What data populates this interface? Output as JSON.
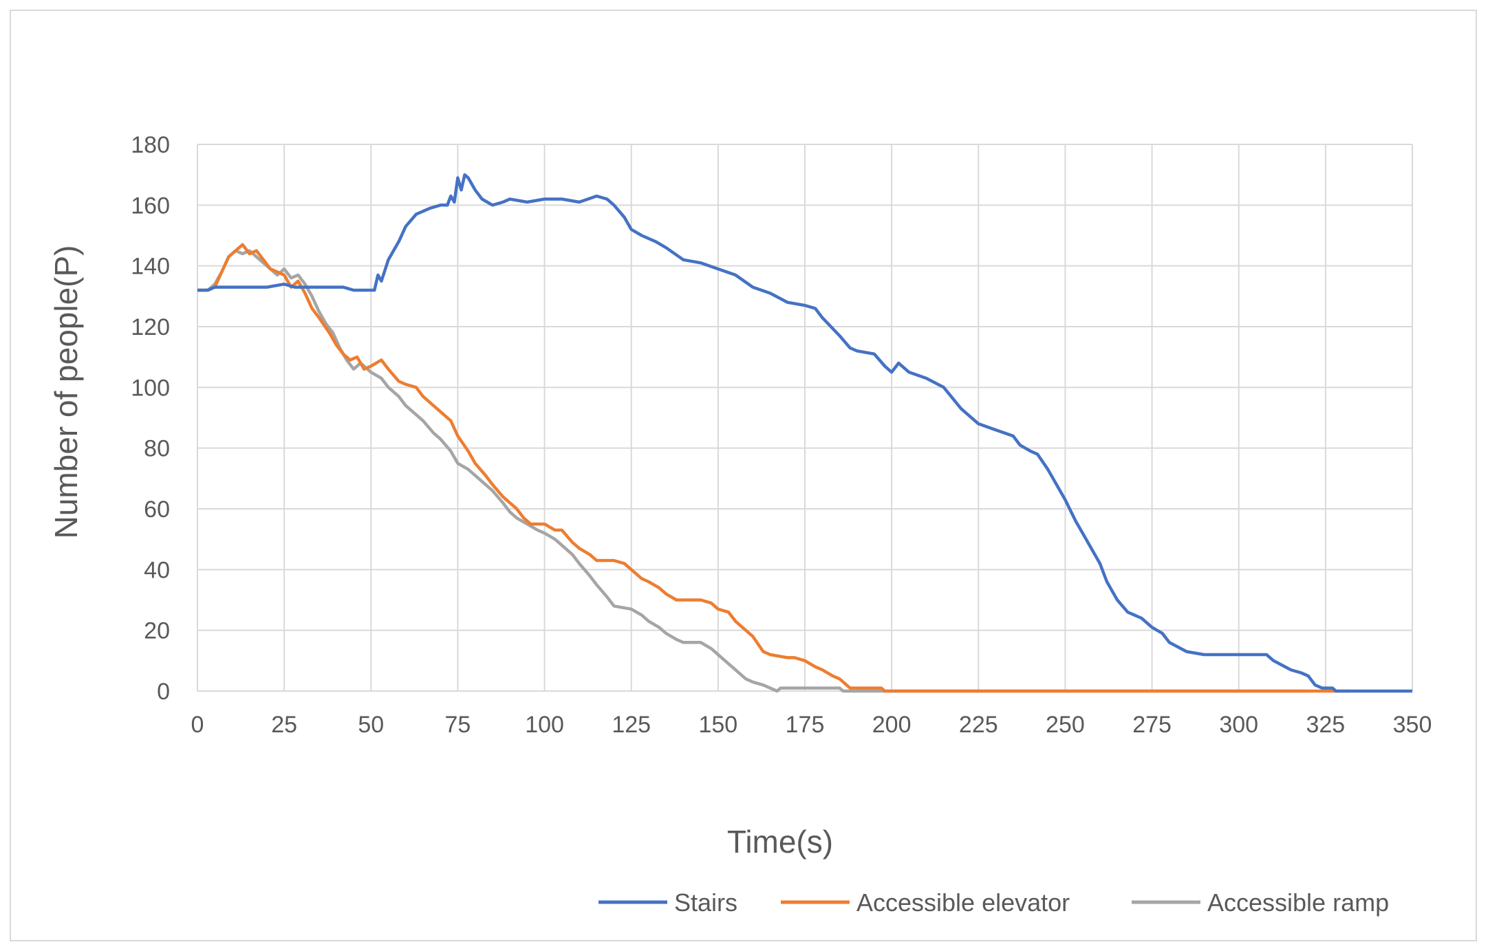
{
  "chart_data": {
    "type": "line",
    "title": "",
    "xlabel": "Time(s)",
    "ylabel": "Number of people(P)",
    "xlim": [
      0,
      350
    ],
    "ylim": [
      0,
      180
    ],
    "x_ticks": [
      0,
      25,
      50,
      75,
      100,
      125,
      150,
      175,
      200,
      225,
      250,
      275,
      300,
      325,
      350
    ],
    "y_ticks": [
      0,
      20,
      40,
      60,
      80,
      100,
      120,
      140,
      160,
      180
    ],
    "grid": true,
    "legend_position": "bottom-right",
    "series": [
      {
        "name": "Stairs",
        "color": "#4472C4",
        "points": [
          [
            0,
            132
          ],
          [
            3,
            132
          ],
          [
            5,
            133
          ],
          [
            10,
            133
          ],
          [
            15,
            133
          ],
          [
            20,
            133
          ],
          [
            25,
            134
          ],
          [
            28,
            133
          ],
          [
            35,
            133
          ],
          [
            42,
            133
          ],
          [
            45,
            132
          ],
          [
            50,
            132
          ],
          [
            51,
            132
          ],
          [
            52,
            137
          ],
          [
            53,
            135
          ],
          [
            55,
            142
          ],
          [
            58,
            148
          ],
          [
            60,
            153
          ],
          [
            63,
            157
          ],
          [
            67,
            159
          ],
          [
            70,
            160
          ],
          [
            72,
            160
          ],
          [
            73,
            163
          ],
          [
            74,
            161
          ],
          [
            75,
            169
          ],
          [
            76,
            165
          ],
          [
            77,
            170
          ],
          [
            78,
            169
          ],
          [
            80,
            165
          ],
          [
            82,
            162
          ],
          [
            85,
            160
          ],
          [
            88,
            161
          ],
          [
            90,
            162
          ],
          [
            95,
            161
          ],
          [
            100,
            162
          ],
          [
            105,
            162
          ],
          [
            110,
            161
          ],
          [
            115,
            163
          ],
          [
            118,
            162
          ],
          [
            120,
            160
          ],
          [
            123,
            156
          ],
          [
            125,
            152
          ],
          [
            128,
            150
          ],
          [
            132,
            148
          ],
          [
            135,
            146
          ],
          [
            140,
            142
          ],
          [
            145,
            141
          ],
          [
            150,
            139
          ],
          [
            155,
            137
          ],
          [
            160,
            133
          ],
          [
            165,
            131
          ],
          [
            170,
            128
          ],
          [
            175,
            127
          ],
          [
            178,
            126
          ],
          [
            180,
            123
          ],
          [
            185,
            117
          ],
          [
            188,
            113
          ],
          [
            190,
            112
          ],
          [
            195,
            111
          ],
          [
            198,
            107
          ],
          [
            200,
            105
          ],
          [
            202,
            108
          ],
          [
            205,
            105
          ],
          [
            210,
            103
          ],
          [
            215,
            100
          ],
          [
            220,
            93
          ],
          [
            225,
            88
          ],
          [
            230,
            86
          ],
          [
            235,
            84
          ],
          [
            237,
            81
          ],
          [
            240,
            79
          ],
          [
            242,
            78
          ],
          [
            245,
            73
          ],
          [
            248,
            67
          ],
          [
            250,
            63
          ],
          [
            253,
            56
          ],
          [
            255,
            52
          ],
          [
            258,
            46
          ],
          [
            260,
            42
          ],
          [
            262,
            36
          ],
          [
            265,
            30
          ],
          [
            268,
            26
          ],
          [
            272,
            24
          ],
          [
            275,
            21
          ],
          [
            278,
            19
          ],
          [
            280,
            16
          ],
          [
            285,
            13
          ],
          [
            290,
            12
          ],
          [
            300,
            12
          ],
          [
            308,
            12
          ],
          [
            310,
            10
          ],
          [
            315,
            7
          ],
          [
            318,
            6
          ],
          [
            320,
            5
          ],
          [
            322,
            2
          ],
          [
            324,
            1
          ],
          [
            327,
            1
          ],
          [
            328,
            0
          ],
          [
            335,
            0
          ],
          [
            350,
            0
          ]
        ]
      },
      {
        "name": "Accessible elevator",
        "color": "#ED7D31",
        "points": [
          [
            0,
            132
          ],
          [
            3,
            132
          ],
          [
            5,
            133
          ],
          [
            7,
            138
          ],
          [
            9,
            143
          ],
          [
            11,
            145
          ],
          [
            13,
            147
          ],
          [
            15,
            144
          ],
          [
            17,
            145
          ],
          [
            19,
            142
          ],
          [
            21,
            139
          ],
          [
            23,
            138
          ],
          [
            25,
            137
          ],
          [
            27,
            133
          ],
          [
            29,
            135
          ],
          [
            31,
            131
          ],
          [
            33,
            126
          ],
          [
            35,
            123
          ],
          [
            38,
            118
          ],
          [
            40,
            114
          ],
          [
            42,
            111
          ],
          [
            44,
            109
          ],
          [
            46,
            110
          ],
          [
            48,
            106
          ],
          [
            50,
            107
          ],
          [
            53,
            109
          ],
          [
            55,
            106
          ],
          [
            58,
            102
          ],
          [
            60,
            101
          ],
          [
            63,
            100
          ],
          [
            65,
            97
          ],
          [
            68,
            94
          ],
          [
            70,
            92
          ],
          [
            73,
            89
          ],
          [
            75,
            84
          ],
          [
            78,
            79
          ],
          [
            80,
            75
          ],
          [
            83,
            71
          ],
          [
            85,
            68
          ],
          [
            88,
            64
          ],
          [
            90,
            62
          ],
          [
            92,
            60
          ],
          [
            94,
            57
          ],
          [
            96,
            55
          ],
          [
            100,
            55
          ],
          [
            103,
            53
          ],
          [
            105,
            53
          ],
          [
            108,
            49
          ],
          [
            110,
            47
          ],
          [
            113,
            45
          ],
          [
            115,
            43
          ],
          [
            120,
            43
          ],
          [
            123,
            42
          ],
          [
            125,
            40
          ],
          [
            128,
            37
          ],
          [
            130,
            36
          ],
          [
            133,
            34
          ],
          [
            135,
            32
          ],
          [
            138,
            30
          ],
          [
            140,
            30
          ],
          [
            145,
            30
          ],
          [
            148,
            29
          ],
          [
            150,
            27
          ],
          [
            153,
            26
          ],
          [
            155,
            23
          ],
          [
            158,
            20
          ],
          [
            160,
            18
          ],
          [
            163,
            13
          ],
          [
            165,
            12
          ],
          [
            170,
            11
          ],
          [
            172,
            11
          ],
          [
            175,
            10
          ],
          [
            178,
            8
          ],
          [
            180,
            7
          ],
          [
            183,
            5
          ],
          [
            185,
            4
          ],
          [
            188,
            1
          ],
          [
            190,
            1
          ],
          [
            195,
            1
          ],
          [
            197,
            1
          ],
          [
            198,
            0
          ],
          [
            200,
            0
          ],
          [
            250,
            0
          ],
          [
            320,
            0
          ],
          [
            325,
            0
          ],
          [
            332,
            0
          ]
        ]
      },
      {
        "name": "Accessible ramp",
        "color": "#A5A5A5",
        "points": [
          [
            0,
            132
          ],
          [
            3,
            132
          ],
          [
            5,
            134
          ],
          [
            7,
            138
          ],
          [
            9,
            143
          ],
          [
            11,
            145
          ],
          [
            13,
            144
          ],
          [
            15,
            145
          ],
          [
            17,
            143
          ],
          [
            19,
            141
          ],
          [
            21,
            139
          ],
          [
            23,
            137
          ],
          [
            25,
            139
          ],
          [
            27,
            136
          ],
          [
            29,
            137
          ],
          [
            31,
            134
          ],
          [
            33,
            130
          ],
          [
            35,
            125
          ],
          [
            37,
            121
          ],
          [
            39,
            118
          ],
          [
            41,
            113
          ],
          [
            43,
            109
          ],
          [
            45,
            106
          ],
          [
            47,
            108
          ],
          [
            50,
            105
          ],
          [
            53,
            103
          ],
          [
            55,
            100
          ],
          [
            58,
            97
          ],
          [
            60,
            94
          ],
          [
            63,
            91
          ],
          [
            65,
            89
          ],
          [
            68,
            85
          ],
          [
            70,
            83
          ],
          [
            73,
            79
          ],
          [
            75,
            75
          ],
          [
            78,
            73
          ],
          [
            80,
            71
          ],
          [
            83,
            68
          ],
          [
            85,
            66
          ],
          [
            88,
            62
          ],
          [
            90,
            59
          ],
          [
            92,
            57
          ],
          [
            95,
            55
          ],
          [
            98,
            53
          ],
          [
            100,
            52
          ],
          [
            103,
            50
          ],
          [
            105,
            48
          ],
          [
            108,
            45
          ],
          [
            110,
            42
          ],
          [
            113,
            38
          ],
          [
            115,
            35
          ],
          [
            118,
            31
          ],
          [
            120,
            28
          ],
          [
            125,
            27
          ],
          [
            128,
            25
          ],
          [
            130,
            23
          ],
          [
            133,
            21
          ],
          [
            135,
            19
          ],
          [
            138,
            17
          ],
          [
            140,
            16
          ],
          [
            145,
            16
          ],
          [
            148,
            14
          ],
          [
            150,
            12
          ],
          [
            153,
            9
          ],
          [
            155,
            7
          ],
          [
            158,
            4
          ],
          [
            160,
            3
          ],
          [
            163,
            2
          ],
          [
            165,
            1
          ],
          [
            167,
            0
          ],
          [
            168,
            1
          ],
          [
            170,
            1
          ],
          [
            175,
            1
          ],
          [
            180,
            1
          ],
          [
            185,
            1
          ],
          [
            186,
            0
          ],
          [
            200,
            0
          ],
          [
            250,
            0
          ],
          [
            300,
            0
          ],
          [
            320,
            0
          ]
        ]
      }
    ]
  }
}
